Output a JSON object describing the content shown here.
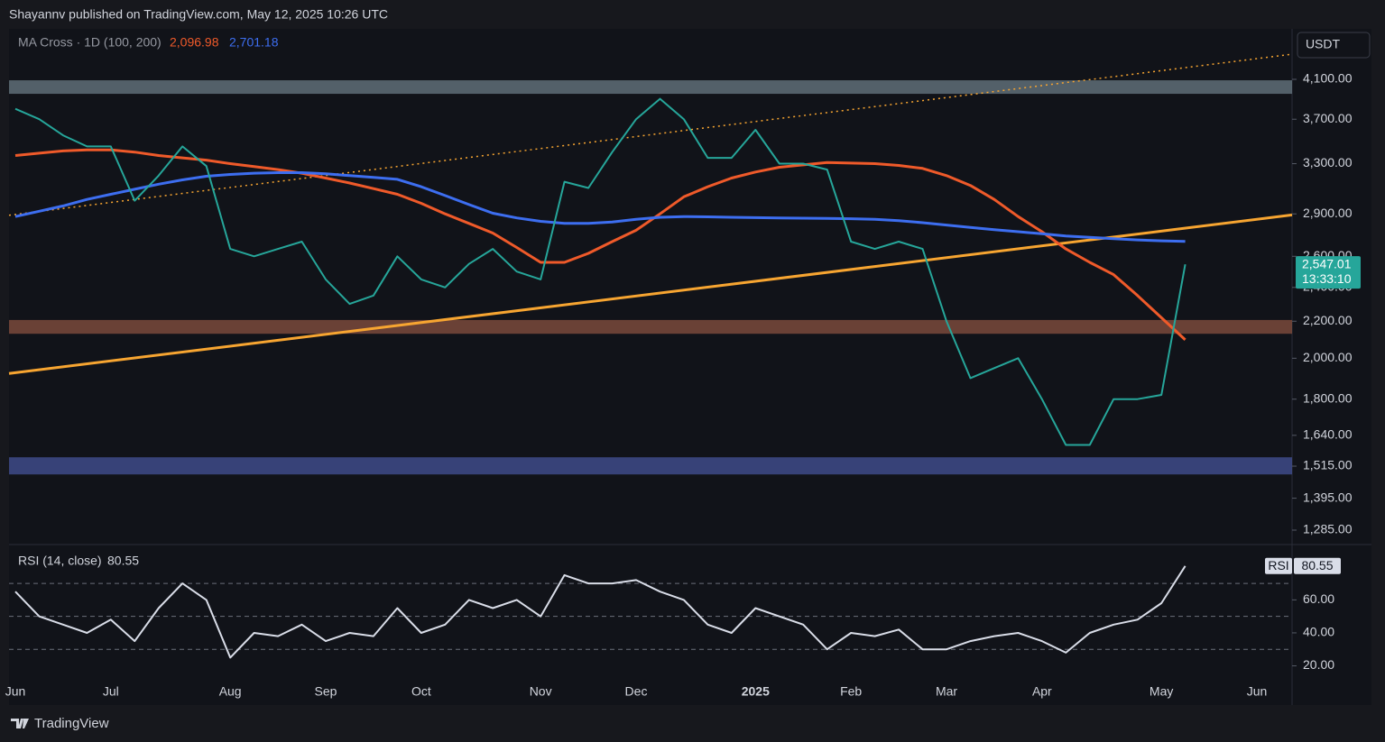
{
  "header": "Shayannv published on TradingView.com, May 12, 2025 10:26 UTC",
  "currency": "USDT",
  "footer": "TradingView",
  "chart_data": [
    {
      "type": "line",
      "log_scale": true,
      "indicator_label": "MA Cross · 1D (100, 200)",
      "categories": [
        "Jun",
        null,
        null,
        null,
        "Jul",
        null,
        null,
        null,
        null,
        "Aug",
        null,
        null,
        null,
        "Sep",
        null,
        null,
        null,
        "Oct",
        null,
        null,
        null,
        null,
        "Nov",
        null,
        null,
        null,
        "Dec",
        null,
        null,
        null,
        null,
        "2025",
        null,
        null,
        null,
        "Feb",
        null,
        null,
        null,
        "Mar",
        null,
        null,
        null,
        "Apr",
        null,
        null,
        null,
        null,
        "May",
        null,
        null,
        null,
        "Jun"
      ],
      "series": [
        {
          "color": "#26a69a",
          "values": [
            3800,
            3700,
            3550,
            3450,
            3450,
            3000,
            3200,
            3450,
            3280,
            2650,
            2600,
            2650,
            2700,
            2450,
            2300,
            2350,
            2600,
            2450,
            2400,
            2550,
            2650,
            2500,
            2450,
            3150,
            3100,
            3400,
            3700,
            3900,
            3700,
            3350,
            3350,
            3600,
            3300,
            3300,
            3250,
            2700,
            2650,
            2700,
            2650,
            2200,
            1900,
            1950,
            2000,
            1800,
            1600,
            1600,
            1800,
            1800,
            1820,
            2547.01,
            null,
            null,
            null
          ],
          "value_labels": [
            null,
            null,
            null,
            null,
            null,
            null,
            null,
            null,
            null,
            null,
            null,
            null,
            null,
            null,
            null,
            null,
            null,
            null,
            null,
            null,
            null,
            null,
            null,
            null,
            null,
            null,
            null,
            null,
            null,
            null,
            null,
            null,
            null,
            null,
            null,
            null,
            null,
            null,
            null,
            null,
            null,
            null,
            null,
            null,
            null,
            null,
            null,
            null,
            null,
            "2,547.01",
            null,
            null,
            null
          ],
          "countdown": "13:33:10"
        },
        {
          "color": "#ef5a2a",
          "values": [
            3370,
            3390,
            3410,
            3420,
            3420,
            3400,
            3370,
            3350,
            3330,
            3300,
            3275,
            3250,
            3220,
            3180,
            3140,
            3095,
            3050,
            2980,
            2900,
            2830,
            2760,
            2660,
            2560,
            2560,
            2620,
            2700,
            2780,
            2900,
            3030,
            3110,
            3180,
            3230,
            3270,
            3290,
            3310,
            3305,
            3300,
            3285,
            3260,
            3200,
            3120,
            3010,
            2880,
            2770,
            2650,
            2560,
            2480,
            2350,
            2220,
            2096.98,
            null,
            null,
            null
          ],
          "value_labels": [
            null,
            null,
            null,
            null,
            null,
            null,
            null,
            null,
            null,
            null,
            null,
            null,
            null,
            null,
            null,
            null,
            null,
            null,
            null,
            null,
            null,
            null,
            null,
            null,
            null,
            null,
            null,
            null,
            null,
            null,
            null,
            null,
            null,
            null,
            null,
            null,
            null,
            null,
            null,
            null,
            null,
            null,
            null,
            null,
            null,
            null,
            null,
            null,
            null,
            "2,096.98",
            null,
            null,
            null
          ]
        },
        {
          "color": "#3d6ef0",
          "values": [
            2880,
            2920,
            2960,
            3010,
            3050,
            3090,
            3130,
            3165,
            3195,
            3210,
            3220,
            3225,
            3225,
            3215,
            3200,
            3185,
            3170,
            3110,
            3040,
            2970,
            2905,
            2870,
            2845,
            2830,
            2830,
            2840,
            2860,
            2875,
            2880,
            2878,
            2875,
            2872,
            2870,
            2868,
            2866,
            2864,
            2860,
            2850,
            2835,
            2818,
            2800,
            2785,
            2770,
            2755,
            2740,
            2730,
            2720,
            2712,
            2706,
            2701.18,
            null,
            null,
            null
          ],
          "value_labels": [
            null,
            null,
            null,
            null,
            null,
            null,
            null,
            null,
            null,
            null,
            null,
            null,
            null,
            null,
            null,
            null,
            null,
            null,
            null,
            null,
            null,
            null,
            null,
            null,
            null,
            null,
            null,
            null,
            null,
            null,
            null,
            null,
            null,
            null,
            null,
            null,
            null,
            null,
            null,
            null,
            null,
            null,
            null,
            null,
            null,
            null,
            null,
            null,
            null,
            "2,701.18",
            null,
            null,
            null
          ]
        }
      ],
      "zones": [
        {
          "low": 3950,
          "high": 4090,
          "color": "#5f6f78"
        },
        {
          "low": 2130,
          "high": 2207,
          "color": "#7a4a3c"
        },
        {
          "low": 1483,
          "high": 1550,
          "color": "#3e4b8a"
        }
      ],
      "trendlines": [
        {
          "values": [
            1923,
            2892
          ],
          "color": "#f7a531",
          "style": "solid"
        },
        {
          "values": [
            2890,
            4374
          ],
          "color": "#f7a531",
          "style": "dotted"
        }
      ],
      "ylim": [
        1241,
        4669
      ],
      "yticks": [
        {
          "value": 4100,
          "label": "4,100.00"
        },
        {
          "value": 3700,
          "label": "3,700.00"
        },
        {
          "value": 3300,
          "label": "3,300.00"
        },
        {
          "value": 2900,
          "label": "2,900.00"
        },
        {
          "value": 2600,
          "label": "2,600.00"
        },
        {
          "value": 2400,
          "label": "2,400.00"
        },
        {
          "value": 2200,
          "label": "2,200.00"
        },
        {
          "value": 2000,
          "label": "2,000.00"
        },
        {
          "value": 1800,
          "label": "1,800.00"
        },
        {
          "value": 1640,
          "label": "1,640.00"
        },
        {
          "value": 1515,
          "label": "1,515.00"
        },
        {
          "value": 1395,
          "label": "1,395.00"
        },
        {
          "value": 1285,
          "label": "1,285.00"
        }
      ]
    },
    {
      "type": "line",
      "title": "RSI (14, close)",
      "short_title": "RSI",
      "color": "#d9dde8",
      "values": [
        65,
        50,
        45,
        40,
        48,
        35,
        55,
        70,
        60,
        25,
        40,
        38,
        45,
        35,
        40,
        38,
        55,
        40,
        45,
        60,
        55,
        60,
        50,
        75,
        70,
        70,
        72,
        65,
        60,
        45,
        40,
        55,
        50,
        45,
        30,
        40,
        38,
        42,
        30,
        30,
        35,
        38,
        40,
        35,
        28,
        40,
        45,
        48,
        58,
        80.55,
        null,
        null,
        null
      ],
      "ylim": [
        11,
        93
      ],
      "yticks": [
        {
          "value": 60,
          "label": "60.00"
        },
        {
          "value": 40,
          "label": "40.00"
        },
        {
          "value": 20,
          "label": "20.00"
        }
      ],
      "bands": [
        70,
        50,
        30
      ]
    }
  ]
}
